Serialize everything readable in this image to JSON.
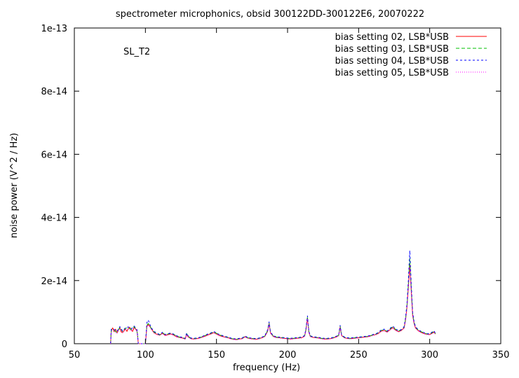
{
  "chart_data": {
    "type": "line",
    "title": "spectrometer microphonics, obsid 300122DD-300122E6, 20070222",
    "annotation": "SL_T2",
    "xlabel": "frequency (Hz)",
    "ylabel": "noise power (V^2 / Hz)",
    "xlim": [
      50,
      350
    ],
    "ylim": [
      0,
      1e-13
    ],
    "xticks": [
      50,
      100,
      150,
      200,
      250,
      300,
      350
    ],
    "xtick_labels": [
      "50",
      "100",
      "150",
      "200",
      "250",
      "300",
      "350"
    ],
    "yticks": [
      0,
      2e-14,
      4e-14,
      6e-14,
      8e-14,
      1e-13
    ],
    "ytick_labels": [
      "0",
      "2e-14",
      "4e-14",
      "6e-14",
      "8e-14",
      "1e-13"
    ],
    "grid": false,
    "legend_position": "top-right",
    "series": [
      {
        "name": "bias setting 02, LSB*USB",
        "color": "#ff0000",
        "dash": "none",
        "x": [
          75.5,
          76,
          77,
          78,
          79,
          80,
          81,
          82,
          83,
          84,
          85,
          86,
          87,
          88,
          89,
          90,
          91,
          92,
          93,
          94,
          94.5,
          95,
          99,
          100,
          100.5,
          101,
          102,
          103,
          104,
          105,
          106,
          108,
          110,
          112,
          114,
          116,
          118,
          120,
          122,
          124,
          126,
          128,
          129,
          130,
          132,
          134,
          136,
          138,
          140,
          142,
          144,
          146,
          148,
          150,
          152,
          154,
          156,
          158,
          160,
          162,
          164,
          166,
          168,
          170,
          172,
          174,
          176,
          178,
          180,
          182,
          184,
          186,
          187,
          188,
          190,
          192,
          194,
          196,
          198,
          200,
          202,
          204,
          206,
          208,
          210,
          212,
          213,
          214,
          215,
          216,
          218,
          220,
          222,
          224,
          226,
          228,
          230,
          232,
          234,
          236,
          237,
          238,
          240,
          242,
          244,
          246,
          248,
          250,
          252,
          254,
          256,
          258,
          260,
          262,
          264,
          266,
          268,
          270,
          272,
          274,
          276,
          278,
          280,
          282,
          283,
          284,
          285,
          286,
          287,
          288,
          289,
          290,
          292,
          294,
          296,
          298,
          300,
          302,
          303,
          304
        ],
        "y": [
          0,
          4.2e-15,
          5e-15,
          3.8e-15,
          4.6e-15,
          3.4e-15,
          4.4e-15,
          5e-15,
          3.7e-15,
          3.5e-15,
          4.2e-15,
          4.6e-15,
          3.9e-15,
          4.8e-15,
          5.2e-15,
          4.3e-15,
          3.9e-15,
          5.1e-15,
          4.7e-15,
          4.1e-15,
          2.5e-15,
          0,
          0,
          0,
          2.5e-15,
          5.4e-15,
          6.1e-15,
          5.6e-15,
          4.8e-15,
          4.2e-15,
          3.5e-15,
          3e-15,
          2.7e-15,
          3.3e-15,
          2.6e-15,
          2.9e-15,
          3.1e-15,
          2.7e-15,
          2.2e-15,
          2e-15,
          1.8e-15,
          1.5e-15,
          3e-15,
          2.2e-15,
          1.6e-15,
          1.5e-15,
          1.6e-15,
          1.8e-15,
          2.1e-15,
          2.4e-15,
          2.8e-15,
          3.1e-15,
          3.5e-15,
          3.1e-15,
          2.6e-15,
          2.3e-15,
          2.1e-15,
          1.9e-15,
          1.6e-15,
          1.4e-15,
          1.3e-15,
          1.5e-15,
          1.6e-15,
          2.2e-15,
          1.8e-15,
          1.6e-15,
          1.5e-15,
          1.4e-15,
          1.6e-15,
          1.9e-15,
          2.3e-15,
          4e-15,
          6.4e-15,
          3.4e-15,
          2.3e-15,
          2e-15,
          1.9e-15,
          1.8e-15,
          1.7e-15,
          1.6e-15,
          1.5e-15,
          1.6e-15,
          1.7e-15,
          1.8e-15,
          1.9e-15,
          2.4e-15,
          4.5e-15,
          8.2e-15,
          3.6e-15,
          2.3e-15,
          2e-15,
          1.9e-15,
          1.8e-15,
          1.6e-15,
          1.5e-15,
          1.5e-15,
          1.6e-15,
          1.8e-15,
          2.1e-15,
          2.6e-15,
          5.3e-15,
          2.6e-15,
          1.9e-15,
          1.7e-15,
          1.6e-15,
          1.7e-15,
          1.8e-15,
          1.9e-15,
          2e-15,
          2.1e-15,
          2.2e-15,
          2.4e-15,
          2.7e-15,
          2.9e-15,
          3.3e-15,
          4e-15,
          4.2e-15,
          3.7e-15,
          4.4e-15,
          5.1e-15,
          4.3e-15,
          3.8e-15,
          4.2e-15,
          5e-15,
          7.5e-15,
          1.15e-14,
          1.8e-14,
          2.5e-14,
          1.7e-14,
          9e-15,
          6.5e-15,
          5e-15,
          4.1e-15,
          3.6e-15,
          3.2e-15,
          3e-15,
          2.9e-15,
          3.4e-15,
          3.7e-15,
          3.1e-15
        ]
      },
      {
        "name": "bias setting 03, LSB*USB",
        "color": "#00c000",
        "dash": "5,3",
        "x": [
          75.5,
          76,
          78,
          80,
          82,
          84,
          86,
          88,
          90,
          92,
          94,
          94.5,
          95,
          99,
          100,
          100.5,
          101,
          102,
          103,
          104,
          106,
          108,
          110,
          112,
          114,
          116,
          118,
          120,
          122,
          124,
          126,
          128,
          129,
          130,
          132,
          134,
          136,
          138,
          140,
          142,
          144,
          146,
          148,
          150,
          152,
          154,
          156,
          158,
          160,
          162,
          164,
          166,
          168,
          170,
          172,
          174,
          176,
          178,
          180,
          182,
          184,
          186,
          187,
          188,
          190,
          192,
          194,
          196,
          198,
          200,
          202,
          204,
          206,
          208,
          210,
          212,
          213,
          214,
          215,
          216,
          218,
          220,
          222,
          224,
          226,
          228,
          230,
          232,
          234,
          236,
          237,
          238,
          240,
          242,
          244,
          246,
          248,
          250,
          252,
          254,
          256,
          258,
          260,
          262,
          264,
          266,
          268,
          270,
          272,
          274,
          276,
          278,
          280,
          282,
          283,
          284,
          285,
          286,
          287,
          288,
          289,
          290,
          292,
          294,
          296,
          298,
          300,
          302,
          303,
          304
        ],
        "y": [
          0,
          4.4e-15,
          4.2e-15,
          3.6e-15,
          5.2e-15,
          3.8e-15,
          4.9e-15,
          5e-15,
          4.5e-15,
          5.4e-15,
          4.3e-15,
          2.6e-15,
          0,
          0,
          0,
          2.7e-15,
          5.8e-15,
          6.4e-15,
          5.8e-15,
          4.9e-15,
          3.7e-15,
          3.2e-15,
          2.8e-15,
          3.5e-15,
          2.8e-15,
          3.1e-15,
          3.3e-15,
          2.9e-15,
          2.4e-15,
          2.1e-15,
          1.9e-15,
          1.6e-15,
          3.2e-15,
          2.4e-15,
          1.7e-15,
          1.6e-15,
          1.7e-15,
          1.9e-15,
          2.2e-15,
          2.6e-15,
          3e-15,
          3.3e-15,
          3.7e-15,
          3.3e-15,
          2.8e-15,
          2.5e-15,
          2.2e-15,
          2e-15,
          1.7e-15,
          1.5e-15,
          1.4e-15,
          1.6e-15,
          1.7e-15,
          2.3e-15,
          1.9e-15,
          1.7e-15,
          1.6e-15,
          1.5e-15,
          1.7e-15,
          2e-15,
          2.4e-15,
          4.2e-15,
          6.7e-15,
          3.6e-15,
          2.4e-15,
          2.1e-15,
          2e-15,
          1.9e-15,
          1.8e-15,
          1.7e-15,
          1.6e-15,
          1.7e-15,
          1.8e-15,
          1.9e-15,
          2e-15,
          2.5e-15,
          4.7e-15,
          8.5e-15,
          3.8e-15,
          2.4e-15,
          2.1e-15,
          2e-15,
          1.9e-15,
          1.7e-15,
          1.6e-15,
          1.6e-15,
          1.7e-15,
          1.9e-15,
          2.2e-15,
          2.7e-15,
          5.6e-15,
          2.7e-15,
          2e-15,
          1.8e-15,
          1.7e-15,
          1.8e-15,
          1.9e-15,
          2e-15,
          2.1e-15,
          2.2e-15,
          2.3e-15,
          2.5e-15,
          2.8e-15,
          3e-15,
          3.5e-15,
          4.2e-15,
          4.4e-15,
          3.9e-15,
          4.6e-15,
          5.4e-15,
          4.5e-15,
          4e-15,
          4.4e-15,
          5.2e-15,
          7.8e-15,
          1.2e-14,
          1.9e-14,
          2.7e-14,
          1.8e-14,
          9.5e-15,
          6.8e-15,
          5.2e-15,
          4.3e-15,
          3.8e-15,
          3.4e-15,
          3.1e-15,
          3e-15,
          3.6e-15,
          3.9e-15,
          3.2e-15
        ]
      },
      {
        "name": "bias setting 04, LSB*USB",
        "color": "#0000ff",
        "dash": "3,3",
        "x": [
          75.5,
          76,
          78,
          80,
          82,
          84,
          86,
          88,
          90,
          92,
          94,
          94.5,
          95,
          99,
          100,
          100.5,
          101,
          102,
          103,
          104,
          106,
          108,
          110,
          112,
          114,
          116,
          118,
          120,
          122,
          124,
          126,
          128,
          129,
          130,
          132,
          134,
          136,
          138,
          140,
          142,
          144,
          146,
          148,
          150,
          152,
          154,
          156,
          158,
          160,
          162,
          164,
          166,
          168,
          170,
          172,
          174,
          176,
          178,
          180,
          182,
          184,
          186,
          187,
          188,
          190,
          192,
          194,
          196,
          198,
          200,
          202,
          204,
          206,
          208,
          210,
          212,
          213,
          214,
          215,
          216,
          218,
          220,
          222,
          224,
          226,
          228,
          230,
          232,
          234,
          236,
          237,
          238,
          240,
          242,
          244,
          246,
          248,
          250,
          252,
          254,
          256,
          258,
          260,
          262,
          264,
          266,
          268,
          270,
          272,
          274,
          276,
          278,
          280,
          282,
          283,
          284,
          285,
          286,
          287,
          288,
          289,
          290,
          292,
          294,
          296,
          298,
          300,
          302,
          303,
          304
        ],
        "y": [
          0,
          4.6e-15,
          4.5e-15,
          3.9e-15,
          5.4e-15,
          4e-15,
          5.1e-15,
          5.3e-15,
          4.7e-15,
          5.6e-15,
          4.5e-15,
          2.7e-15,
          0,
          0,
          0,
          3e-15,
          6.6e-15,
          7.5e-15,
          6.3e-15,
          5.1e-15,
          3.9e-15,
          3.4e-15,
          2.9e-15,
          3.6e-15,
          2.9e-15,
          3.2e-15,
          3.4e-15,
          3e-15,
          2.5e-15,
          2.2e-15,
          2e-15,
          1.7e-15,
          3.4e-15,
          2.5e-15,
          1.8e-15,
          1.7e-15,
          1.8e-15,
          2e-15,
          2.3e-15,
          2.7e-15,
          3.1e-15,
          3.4e-15,
          3.9e-15,
          3.4e-15,
          2.9e-15,
          2.6e-15,
          2.3e-15,
          2.1e-15,
          1.8e-15,
          1.6e-15,
          1.5e-15,
          1.7e-15,
          1.8e-15,
          2.4e-15,
          2e-15,
          1.8e-15,
          1.7e-15,
          1.6e-15,
          1.8e-15,
          2.1e-15,
          2.5e-15,
          4.4e-15,
          6.9e-15,
          3.7e-15,
          2.5e-15,
          2.2e-15,
          2.1e-15,
          2e-15,
          1.9e-15,
          1.8e-15,
          1.7e-15,
          1.8e-15,
          1.9e-15,
          2e-15,
          2.1e-15,
          2.6e-15,
          4.9e-15,
          8.8e-15,
          3.9e-15,
          2.5e-15,
          2.2e-15,
          2.1e-15,
          2e-15,
          1.8e-15,
          1.7e-15,
          1.7e-15,
          1.8e-15,
          2e-15,
          2.3e-15,
          2.8e-15,
          5.8e-15,
          2.8e-15,
          2.1e-15,
          1.9e-15,
          1.8e-15,
          1.9e-15,
          2e-15,
          2.1e-15,
          2.2e-15,
          2.3e-15,
          2.4e-15,
          2.6e-15,
          2.9e-15,
          3.1e-15,
          3.6e-15,
          4.4e-15,
          4.6e-15,
          4e-15,
          4.8e-15,
          5.6e-15,
          4.7e-15,
          4.1e-15,
          4.5e-15,
          5.4e-15,
          8.2e-15,
          1.25e-14,
          2e-14,
          2.95e-14,
          1.9e-14,
          1e-14,
          7e-15,
          5.4e-15,
          4.4e-15,
          3.9e-15,
          3.5e-15,
          3.2e-15,
          3.1e-15,
          3.8e-15,
          4.1e-15,
          3.3e-15
        ]
      },
      {
        "name": "bias setting 05, LSB*USB",
        "color": "#ff00ff",
        "dash": "1,2",
        "x": [
          75.5,
          76,
          78,
          80,
          82,
          84,
          86,
          88,
          90,
          92,
          94,
          94.5,
          95,
          99,
          100,
          100.5,
          101,
          102,
          103,
          104,
          106,
          108,
          110,
          112,
          114,
          116,
          118,
          120,
          122,
          124,
          126,
          128,
          129,
          130,
          132,
          134,
          136,
          138,
          140,
          142,
          144,
          146,
          148,
          150,
          152,
          154,
          156,
          158,
          160,
          162,
          164,
          166,
          168,
          170,
          172,
          174,
          176,
          178,
          180,
          182,
          184,
          186,
          187,
          188,
          190,
          192,
          194,
          196,
          198,
          200,
          202,
          204,
          206,
          208,
          210,
          212,
          213,
          214,
          215,
          216,
          218,
          220,
          222,
          224,
          226,
          228,
          230,
          232,
          234,
          236,
          237,
          238,
          240,
          242,
          244,
          246,
          248,
          250,
          252,
          254,
          256,
          258,
          260,
          262,
          264,
          266,
          268,
          270,
          272,
          274,
          276,
          278,
          280,
          282,
          283,
          284,
          285,
          286,
          287,
          288,
          289,
          290,
          292,
          294,
          296,
          298,
          300,
          302,
          303,
          304
        ],
        "y": [
          0,
          4e-15,
          3.9e-15,
          3.3e-15,
          4.8e-15,
          3.5e-15,
          4.5e-15,
          4.7e-15,
          4.1e-15,
          5e-15,
          4e-15,
          2.4e-15,
          0,
          0,
          0,
          2.4e-15,
          5.2e-15,
          5.9e-15,
          5.4e-15,
          4.6e-15,
          3.4e-15,
          2.9e-15,
          2.6e-15,
          3.2e-15,
          2.5e-15,
          2.8e-15,
          3e-15,
          2.6e-15,
          2.1e-15,
          1.9e-15,
          1.7e-15,
          1.4e-15,
          2.9e-15,
          2.1e-15,
          1.5e-15,
          1.4e-15,
          1.5e-15,
          1.7e-15,
          2e-15,
          2.3e-15,
          2.7e-15,
          3e-15,
          3.4e-15,
          3e-15,
          2.5e-15,
          2.2e-15,
          2e-15,
          1.8e-15,
          1.5e-15,
          1.3e-15,
          1.2e-15,
          1.4e-15,
          1.5e-15,
          2.1e-15,
          1.7e-15,
          1.5e-15,
          1.4e-15,
          1.3e-15,
          1.5e-15,
          1.8e-15,
          2.2e-15,
          3.8e-15,
          6.2e-15,
          3.3e-15,
          2.2e-15,
          1.9e-15,
          1.8e-15,
          1.7e-15,
          1.6e-15,
          1.5e-15,
          1.4e-15,
          1.5e-15,
          1.6e-15,
          1.7e-15,
          1.8e-15,
          2.3e-15,
          4.3e-15,
          7.9e-15,
          3.5e-15,
          2.2e-15,
          1.9e-15,
          1.8e-15,
          1.7e-15,
          1.5e-15,
          1.4e-15,
          1.4e-15,
          1.5e-15,
          1.7e-15,
          2e-15,
          2.5e-15,
          5.1e-15,
          2.5e-15,
          1.8e-15,
          1.6e-15,
          1.5e-15,
          1.6e-15,
          1.7e-15,
          1.8e-15,
          1.9e-15,
          2e-15,
          2.1e-15,
          2.3e-15,
          2.6e-15,
          2.8e-15,
          3.2e-15,
          3.9e-15,
          4.1e-15,
          3.6e-15,
          4.3e-15,
          5e-15,
          4.2e-15,
          3.7e-15,
          4.1e-15,
          4.9e-15,
          7.3e-15,
          1.1e-14,
          1.75e-14,
          2.4e-14,
          1.65e-14,
          8.8e-15,
          6.3e-15,
          4.9e-15,
          4e-15,
          3.5e-15,
          3.1e-15,
          2.9e-15,
          2.8e-15,
          3.3e-15,
          3.6e-15,
          3e-15
        ]
      }
    ]
  }
}
